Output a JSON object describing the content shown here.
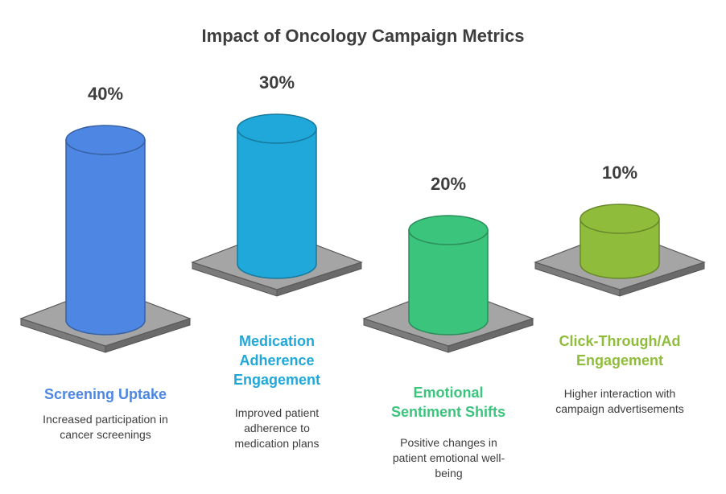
{
  "chart_data": {
    "type": "bar",
    "title": "Impact of Oncology Campaign Metrics",
    "categories": [
      "Screening Uptake",
      "Medication Adherence Engagement",
      "Emotional Sentiment Shifts",
      "Click-Through/Ad Engagement"
    ],
    "values": [
      40,
      30,
      20,
      10
    ],
    "value_labels": [
      "40%",
      "30%",
      "20%",
      "10%"
    ],
    "descriptions": [
      "Increased participation in cancer screenings",
      "Improved patient adherence to medication plans",
      "Positive changes in patient emotional well-being",
      "Higher interaction with campaign advertisements"
    ],
    "colors": [
      "#4d87e3",
      "#1fa8d9",
      "#3bc57c",
      "#8fbd3b"
    ],
    "legend": "none"
  }
}
